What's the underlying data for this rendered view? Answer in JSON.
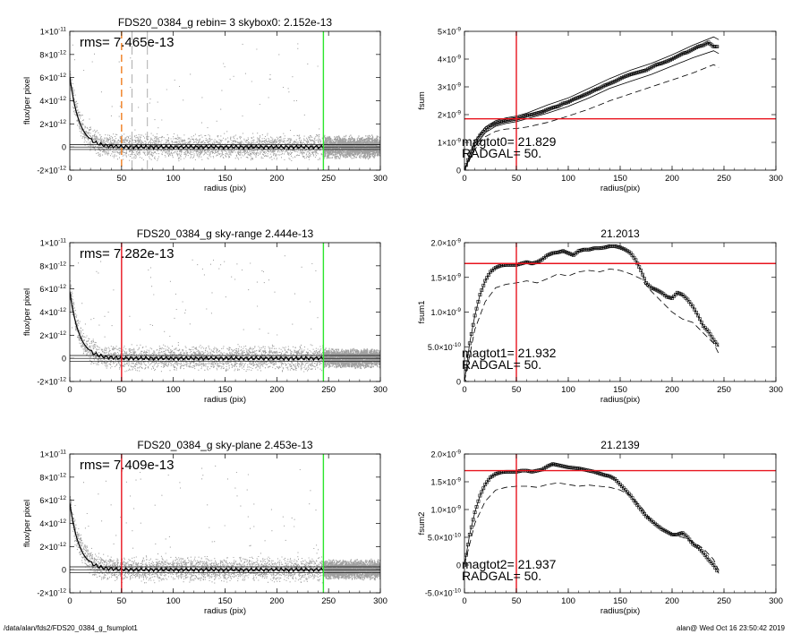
{
  "footer": {
    "path": "/data/alan/fds2/FDS20_0384_g_fsumplot1",
    "stamp": "alan@  Wed Oct 16 23:50:42 2019"
  },
  "colors": {
    "red": "#e8141e",
    "orange": "#f07d1e",
    "green": "#2de62d",
    "scatter": "#a0a0a0"
  },
  "chart_data": [
    {
      "id": "p1",
      "type": "scatter",
      "title": "FDS20_0384_g rebin= 3    skybox0:  2.152e-13",
      "xlabel": "radius (pix)",
      "ylabel": "flux/per pixel",
      "xlim": [
        0,
        300
      ],
      "ylim": [
        -2e-12,
        1e-11
      ],
      "xticks": [
        0,
        50,
        100,
        150,
        200,
        250,
        300
      ],
      "yticks": [
        {
          "v": 1e-11,
          "m": "1×10",
          "e": "-11"
        },
        {
          "v": 8e-12,
          "m": "8×10",
          "e": "-12"
        },
        {
          "v": 6e-12,
          "m": "6×10",
          "e": "-12"
        },
        {
          "v": 4e-12,
          "m": "4×10",
          "e": "-12"
        },
        {
          "v": 2e-12,
          "m": "2×10",
          "e": "-12"
        },
        {
          "v": 0,
          "m": "0",
          "e": ""
        },
        {
          "v": -2e-12,
          "m": "-2×10",
          "e": "-12"
        }
      ],
      "annotation": "rms= 7.465e-13",
      "vlines": [
        {
          "x": 50,
          "color": "orange",
          "style": "dashed"
        },
        {
          "x": 60,
          "color": "gray",
          "style": "dashed"
        },
        {
          "x": 75,
          "color": "gray",
          "style": "dashed"
        },
        {
          "x": 245,
          "color": "green",
          "style": "solid"
        }
      ],
      "hlines": [
        0,
        2.152e-13,
        -2.152e-13
      ],
      "profile": {
        "a": 6.1e-12,
        "s": 9,
        "noise": 1.2e-12,
        "center": 0
      },
      "noise_region": {
        "start": 245,
        "width": 7e-13
      }
    },
    {
      "id": "p2",
      "type": "line",
      "title": "",
      "xlabel": "radius(pix)",
      "ylabel": "fsum",
      "xlim": [
        0,
        300
      ],
      "ylim": [
        0,
        5e-09
      ],
      "xticks": [
        0,
        50,
        100,
        150,
        200,
        250,
        300
      ],
      "yticks": [
        {
          "v": 5e-09,
          "m": "5×10",
          "e": "-9"
        },
        {
          "v": 4e-09,
          "m": "4×10",
          "e": "-9"
        },
        {
          "v": 3e-09,
          "m": "3×10",
          "e": "-9"
        },
        {
          "v": 2e-09,
          "m": "2×10",
          "e": "-9"
        },
        {
          "v": 1e-09,
          "m": "1×10",
          "e": "-9"
        },
        {
          "v": 0,
          "m": "0",
          "e": ""
        }
      ],
      "annotations": [
        "magtot0=  21.829",
        "RADGAL=     50."
      ],
      "vline": 50,
      "hline": 1.85e-09,
      "series": [
        {
          "style": "markers",
          "x": [
            0,
            5,
            10,
            15,
            20,
            25,
            30,
            35,
            40,
            45,
            50,
            55,
            60,
            65,
            70,
            75,
            80,
            85,
            90,
            95,
            100,
            105,
            110,
            115,
            120,
            125,
            130,
            135,
            140,
            145,
            150,
            155,
            160,
            165,
            170,
            175,
            180,
            185,
            190,
            195,
            200,
            205,
            210,
            215,
            220,
            225,
            230,
            235,
            240,
            245
          ],
          "y": [
            0,
            5.5e-10,
            9.5e-10,
            1.25e-09,
            1.45e-09,
            1.6e-09,
            1.68e-09,
            1.74e-09,
            1.78e-09,
            1.82e-09,
            1.85e-09,
            1.9e-09,
            1.97e-09,
            2e-09,
            2.05e-09,
            2.1e-09,
            2.18e-09,
            2.25e-09,
            2.3e-09,
            2.4e-09,
            2.45e-09,
            2.55e-09,
            2.62e-09,
            2.7e-09,
            2.78e-09,
            2.88e-09,
            2.95e-09,
            3.05e-09,
            3.12e-09,
            3.2e-09,
            3.3e-09,
            3.38e-09,
            3.45e-09,
            3.5e-09,
            3.55e-09,
            3.6e-09,
            3.7e-09,
            3.8e-09,
            3.85e-09,
            3.92e-09,
            4e-09,
            4.1e-09,
            4.2e-09,
            4.25e-09,
            4.35e-09,
            4.45e-09,
            4.5e-09,
            4.6e-09,
            4.45e-09,
            4.45e-09
          ]
        },
        {
          "style": "solid",
          "x": [
            0,
            10,
            20,
            30,
            40,
            50,
            60,
            80,
            100,
            120,
            140,
            160,
            180,
            200,
            220,
            240,
            245
          ],
          "y": [
            0,
            1.05e-09,
            1.55e-09,
            1.78e-09,
            1.88e-09,
            1.95e-09,
            2.05e-09,
            2.35e-09,
            2.6e-09,
            2.95e-09,
            3.3e-09,
            3.6e-09,
            3.85e-09,
            4.15e-09,
            4.5e-09,
            4.8e-09,
            4.7e-09
          ]
        },
        {
          "style": "solid",
          "x": [
            0,
            10,
            20,
            30,
            40,
            50,
            60,
            80,
            100,
            120,
            140,
            160,
            180,
            200,
            220,
            240,
            245
          ],
          "y": [
            0,
            8.5e-10,
            1.35e-09,
            1.58e-09,
            1.68e-09,
            1.75e-09,
            1.85e-09,
            2.05e-09,
            2.3e-09,
            2.6e-09,
            2.95e-09,
            3.2e-09,
            3.45e-09,
            3.75e-09,
            4.05e-09,
            4.3e-09,
            4.2e-09
          ]
        },
        {
          "style": "dashed",
          "x": [
            0,
            10,
            20,
            30,
            40,
            50,
            60,
            80,
            100,
            120,
            140,
            160,
            180,
            200,
            220,
            240,
            245
          ],
          "y": [
            0,
            7.5e-10,
            1.2e-09,
            1.4e-09,
            1.48e-09,
            1.5e-09,
            1.55e-09,
            1.72e-09,
            1.95e-09,
            2.2e-09,
            2.5e-09,
            2.75e-09,
            3e-09,
            3.25e-09,
            3.5e-09,
            3.8e-09,
            3.7e-09
          ]
        }
      ]
    },
    {
      "id": "p3",
      "type": "scatter",
      "title": "FDS20_0384_g sky-range  2.444e-13",
      "xlabel": "radius (pix)",
      "ylabel": "flux/per pixel",
      "xlim": [
        0,
        300
      ],
      "ylim": [
        -2e-12,
        1e-11
      ],
      "xticks": [
        0,
        50,
        100,
        150,
        200,
        250,
        300
      ],
      "yticks": [
        {
          "v": 1e-11,
          "m": "1×10",
          "e": "-11"
        },
        {
          "v": 8e-12,
          "m": "8×10",
          "e": "-12"
        },
        {
          "v": 6e-12,
          "m": "6×10",
          "e": "-12"
        },
        {
          "v": 4e-12,
          "m": "4×10",
          "e": "-12"
        },
        {
          "v": 2e-12,
          "m": "2×10",
          "e": "-12"
        },
        {
          "v": 0,
          "m": "0",
          "e": ""
        },
        {
          "v": -2e-12,
          "m": "-2×10",
          "e": "-12"
        }
      ],
      "annotation": "rms= 7.282e-13",
      "vlines": [
        {
          "x": 50,
          "color": "red",
          "style": "solid"
        },
        {
          "x": 245,
          "color": "green",
          "style": "solid"
        }
      ],
      "hlines": [
        0,
        2.444e-13,
        -2.444e-13
      ],
      "profile": {
        "a": 5.8e-12,
        "s": 9,
        "noise": 1.2e-12,
        "center": 0
      },
      "noise_region": {
        "start": 245,
        "width": 6e-13
      }
    },
    {
      "id": "p4",
      "type": "line",
      "title": "21.2013",
      "xlabel": "radius(pix)",
      "ylabel": "fsum1",
      "xlim": [
        0,
        300
      ],
      "ylim": [
        0,
        2e-09
      ],
      "xticks": [
        0,
        50,
        100,
        150,
        200,
        250,
        300
      ],
      "yticks": [
        {
          "v": 2e-09,
          "m": "2.0×10",
          "e": "-9"
        },
        {
          "v": 1.5e-09,
          "m": "1.5×10",
          "e": "-9"
        },
        {
          "v": 1e-09,
          "m": "1.0×10",
          "e": "-9"
        },
        {
          "v": 5e-10,
          "m": "5.0×10",
          "e": "-10"
        },
        {
          "v": 0,
          "m": "0",
          "e": ""
        }
      ],
      "annotations": [
        "magtot1=  21.932",
        "RADGAL=     50."
      ],
      "vline": 50,
      "hline": 1.7e-09,
      "series": [
        {
          "style": "markers",
          "x": [
            0,
            5,
            10,
            15,
            20,
            25,
            30,
            35,
            40,
            45,
            50,
            55,
            60,
            65,
            70,
            75,
            80,
            85,
            90,
            95,
            100,
            105,
            110,
            115,
            120,
            125,
            130,
            135,
            140,
            145,
            150,
            155,
            160,
            165,
            170,
            175,
            180,
            185,
            190,
            195,
            200,
            205,
            210,
            215,
            220,
            225,
            230,
            235,
            240,
            245
          ],
          "y": [
            0,
            5.5e-10,
            9.5e-10,
            1.25e-09,
            1.45e-09,
            1.58e-09,
            1.64e-09,
            1.67e-09,
            1.68e-09,
            1.68e-09,
            1.68e-09,
            1.7e-09,
            1.72e-09,
            1.7e-09,
            1.72e-09,
            1.76e-09,
            1.82e-09,
            1.85e-09,
            1.86e-09,
            1.88e-09,
            1.85e-09,
            1.82e-09,
            1.88e-09,
            1.9e-09,
            1.9e-09,
            1.92e-09,
            1.92e-09,
            1.93e-09,
            1.95e-09,
            1.95e-09,
            1.93e-09,
            1.9e-09,
            1.85e-09,
            1.75e-09,
            1.6e-09,
            1.42e-09,
            1.35e-09,
            1.32e-09,
            1.28e-09,
            1.22e-09,
            1.2e-09,
            1.28e-09,
            1.25e-09,
            1.18e-09,
            1.08e-09,
            9.5e-10,
            8e-10,
            7.2e-10,
            6e-10,
            5e-10
          ]
        },
        {
          "style": "dashed",
          "x": [
            0,
            10,
            20,
            30,
            40,
            50,
            60,
            70,
            80,
            90,
            100,
            110,
            120,
            130,
            140,
            150,
            160,
            170,
            180,
            190,
            200,
            210,
            220,
            230,
            240,
            245
          ],
          "y": [
            0,
            7.5e-10,
            1.15e-09,
            1.35e-09,
            1.4e-09,
            1.42e-09,
            1.45e-09,
            1.42e-09,
            1.48e-09,
            1.55e-09,
            1.52e-09,
            1.58e-09,
            1.6e-09,
            1.58e-09,
            1.62e-09,
            1.6e-09,
            1.55e-09,
            1.48e-09,
            1.3e-09,
            1.15e-09,
            1e-09,
            9e-10,
            8.5e-10,
            7e-10,
            5.5e-10,
            4e-10
          ]
        }
      ]
    },
    {
      "id": "p5",
      "type": "scatter",
      "title": "FDS20_0384_g sky-plane  2.453e-13",
      "xlabel": "radius (pix)",
      "ylabel": "flux/per pixel",
      "xlim": [
        0,
        300
      ],
      "ylim": [
        -2e-12,
        1e-11
      ],
      "xticks": [
        0,
        50,
        100,
        150,
        200,
        250,
        300
      ],
      "yticks": [
        {
          "v": 1e-11,
          "m": "1×10",
          "e": "-11"
        },
        {
          "v": 8e-12,
          "m": "8×10",
          "e": "-12"
        },
        {
          "v": 6e-12,
          "m": "6×10",
          "e": "-12"
        },
        {
          "v": 4e-12,
          "m": "4×10",
          "e": "-12"
        },
        {
          "v": 2e-12,
          "m": "2×10",
          "e": "-12"
        },
        {
          "v": 0,
          "m": "0",
          "e": ""
        },
        {
          "v": -2e-12,
          "m": "-2×10",
          "e": "-12"
        }
      ],
      "annotation": "rms= 7.409e-13",
      "vlines": [
        {
          "x": 50,
          "color": "red",
          "style": "solid"
        },
        {
          "x": 245,
          "color": "green",
          "style": "solid"
        }
      ],
      "hlines": [
        0,
        2.453e-13,
        -2.453e-13
      ],
      "profile": {
        "a": 5.8e-12,
        "s": 9,
        "noise": 1.2e-12,
        "center": 0
      },
      "noise_region": {
        "start": 245,
        "width": 6e-13
      }
    },
    {
      "id": "p6",
      "type": "line",
      "title": "21.2139",
      "xlabel": "radius(pix)",
      "ylabel": "fsum2",
      "xlim": [
        0,
        300
      ],
      "ylim": [
        -5e-10,
        2e-09
      ],
      "xticks": [
        0,
        50,
        100,
        150,
        200,
        250,
        300
      ],
      "yticks": [
        {
          "v": 2e-09,
          "m": "2.0×10",
          "e": "-9"
        },
        {
          "v": 1.5e-09,
          "m": "1.5×10",
          "e": "-9"
        },
        {
          "v": 1e-09,
          "m": "1.0×10",
          "e": "-9"
        },
        {
          "v": 5e-10,
          "m": "5.0×10",
          "e": "-10"
        },
        {
          "v": 0,
          "m": "0",
          "e": ""
        },
        {
          "v": -5e-10,
          "m": "-5.0×10",
          "e": "-10"
        }
      ],
      "annotations": [
        "magtot2=  21.937",
        "RADGAL=     50."
      ],
      "vline": 50,
      "hline": 1.7e-09,
      "series": [
        {
          "style": "markers",
          "x": [
            0,
            5,
            10,
            15,
            20,
            25,
            30,
            35,
            40,
            45,
            50,
            55,
            60,
            65,
            70,
            75,
            80,
            85,
            90,
            95,
            100,
            105,
            110,
            115,
            120,
            125,
            130,
            135,
            140,
            145,
            150,
            155,
            160,
            165,
            170,
            175,
            180,
            185,
            190,
            195,
            200,
            205,
            210,
            215,
            220,
            225,
            230,
            235,
            240,
            245
          ],
          "y": [
            0,
            5.5e-10,
            9.5e-10,
            1.25e-09,
            1.45e-09,
            1.58e-09,
            1.64e-09,
            1.67e-09,
            1.68e-09,
            1.68e-09,
            1.68e-09,
            1.7e-09,
            1.7e-09,
            1.68e-09,
            1.7e-09,
            1.72e-09,
            1.78e-09,
            1.82e-09,
            1.8e-09,
            1.78e-09,
            1.76e-09,
            1.75e-09,
            1.74e-09,
            1.72e-09,
            1.7e-09,
            1.68e-09,
            1.65e-09,
            1.62e-09,
            1.6e-09,
            1.55e-09,
            1.45e-09,
            1.35e-09,
            1.25e-09,
            1.12e-09,
            1e-09,
            8.8e-10,
            8e-10,
            7.2e-10,
            6.5e-10,
            6e-10,
            5.5e-10,
            5.5e-10,
            5.8e-10,
            5e-10,
            3.8e-10,
            3.2e-10,
            2.2e-10,
            1e-10,
            0.0,
            -1.5e-10
          ]
        },
        {
          "style": "dashed",
          "x": [
            0,
            10,
            20,
            30,
            40,
            50,
            60,
            70,
            80,
            90,
            100,
            110,
            120,
            130,
            140,
            150,
            160,
            170,
            180,
            190,
            200,
            210,
            220,
            230,
            240,
            245
          ],
          "y": [
            0,
            7.5e-10,
            1.15e-09,
            1.35e-09,
            1.4e-09,
            1.42e-09,
            1.42e-09,
            1.4e-09,
            1.45e-09,
            1.48e-09,
            1.45e-09,
            1.42e-09,
            1.44e-09,
            1.42e-09,
            1.4e-09,
            1.35e-09,
            1.25e-09,
            1.05e-09,
            8e-10,
            6.5e-10,
            5.5e-10,
            5e-10,
            4.2e-10,
            3e-10,
            1e-10,
            -1e-10
          ]
        }
      ]
    }
  ]
}
